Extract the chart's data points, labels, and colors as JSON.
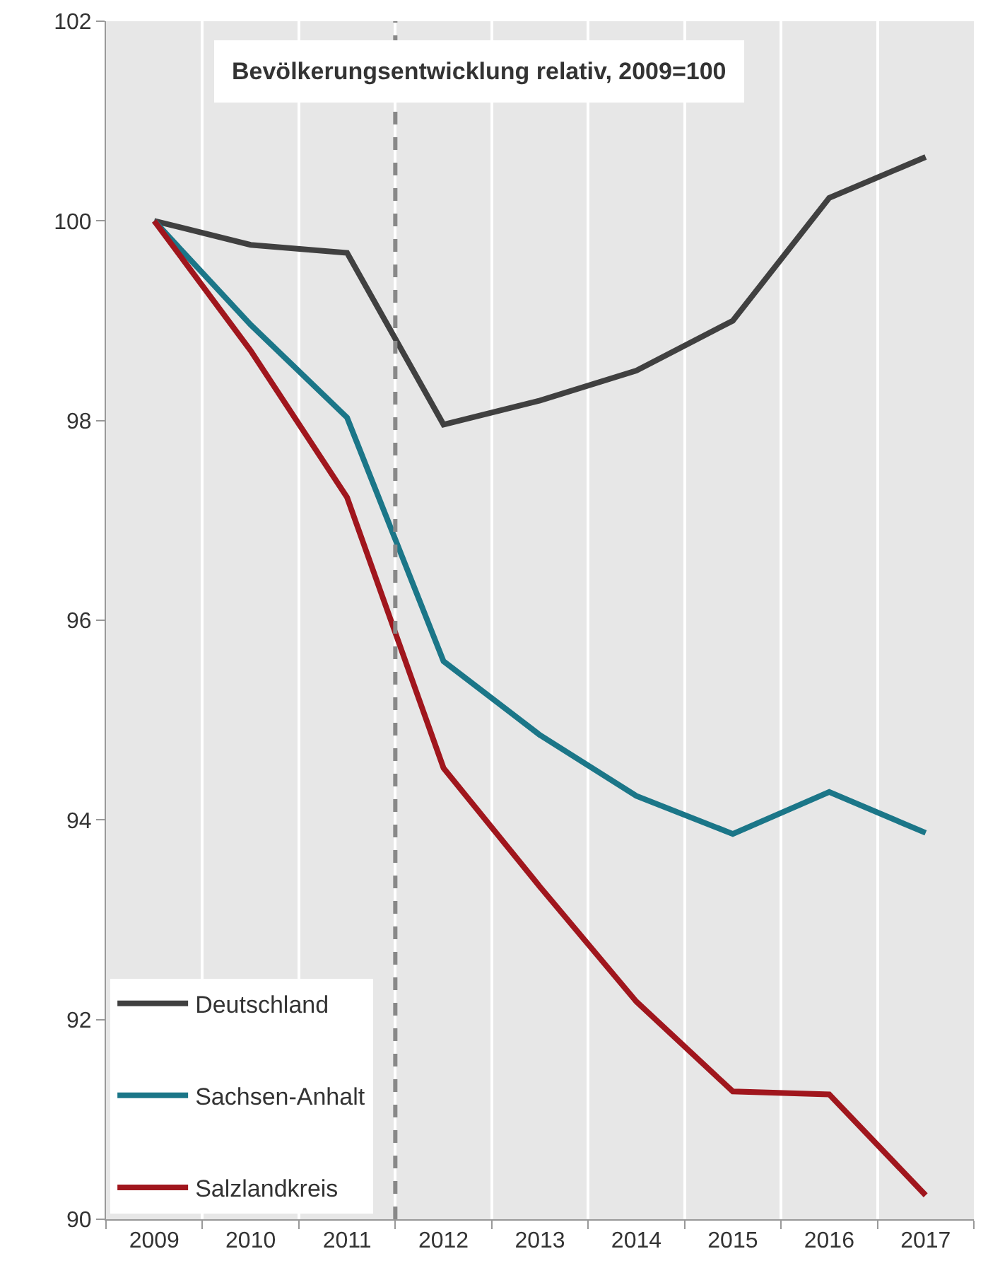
{
  "chart_data": {
    "type": "line",
    "title": "Bevölkerungsentwicklung relativ, 2009=100",
    "x": [
      2009,
      2010,
      2011,
      2012,
      2013,
      2014,
      2015,
      2016,
      2017
    ],
    "series": [
      {
        "name": "Deutschland",
        "color": "#404040",
        "values": [
          100,
          99.76,
          99.68,
          97.96,
          98.2,
          98.5,
          99.0,
          100.23,
          100.64
        ]
      },
      {
        "name": "Sachsen-Anhalt",
        "color": "#1b7688",
        "values": [
          100,
          98.96,
          98.03,
          95.59,
          94.85,
          94.24,
          93.86,
          94.28,
          93.87
        ]
      },
      {
        "name": "Salzlandkreis",
        "color": "#a0161d",
        "values": [
          100,
          98.7,
          97.23,
          94.52,
          93.33,
          92.18,
          91.28,
          91.25,
          90.24
        ]
      }
    ],
    "xlim": [
      2008.5,
      2017.5
    ],
    "xticks": [
      2009,
      2010,
      2011,
      2012,
      2013,
      2014,
      2015,
      2016,
      2017
    ],
    "ylim": [
      90,
      102
    ],
    "yticks": [
      90,
      92,
      94,
      96,
      98,
      100,
      102
    ],
    "ref_lines": [
      {
        "axis": "x",
        "value": 2011.5,
        "color": "#888888",
        "line_style": "dashed"
      }
    ],
    "grid": "x",
    "legend": "bottom left",
    "marker": "none",
    "line_style": "solid"
  }
}
